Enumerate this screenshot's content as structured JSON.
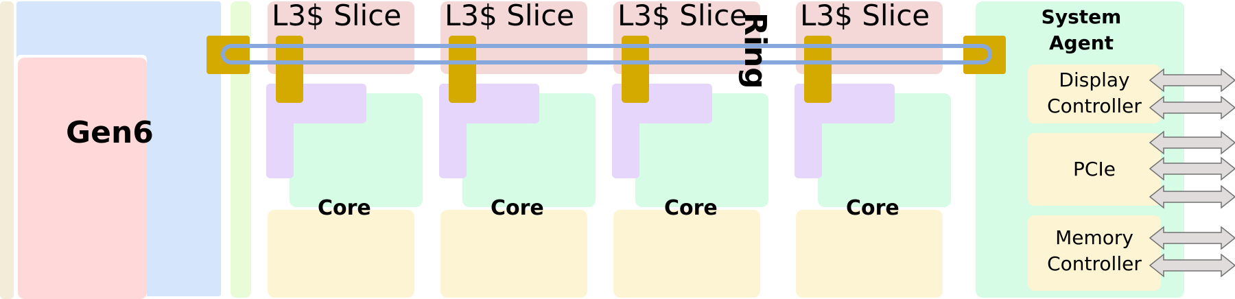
{
  "labels": {
    "gpu": "Gen6",
    "ring": "Ring",
    "system_agent": [
      "System",
      "Agent"
    ],
    "display_controller": [
      "Display",
      "Controller"
    ],
    "pcie": "PCIe",
    "memory_controller": [
      "Memory",
      "Controller"
    ]
  },
  "slices": [
    {
      "label": "L3$ Slice",
      "core": "Core"
    },
    {
      "label": "L3$ Slice",
      "core": "Core"
    },
    {
      "label": "L3$ Slice",
      "core": "Core"
    },
    {
      "label": "L3$ Slice",
      "core": "Core"
    }
  ],
  "colors": {
    "left_strip": "#f2ecd8",
    "gpu_blue": "#d4e5fc",
    "gpu_pink": "#ffd9d9",
    "green_strip": "#e8fcd8",
    "l3_slice": "#f4d8d8",
    "core_purple": "#e6d6fc",
    "core_green": "#d6fce6",
    "core_yellow": "#fdf4d4",
    "system_agent": "#d6fce6",
    "sa_box": "#fdf4d4",
    "ring_stop": "#d4aa00",
    "ring": "#86a8dc",
    "arrow_fill": "#e0dcdc",
    "arrow_stroke": "#707070"
  }
}
